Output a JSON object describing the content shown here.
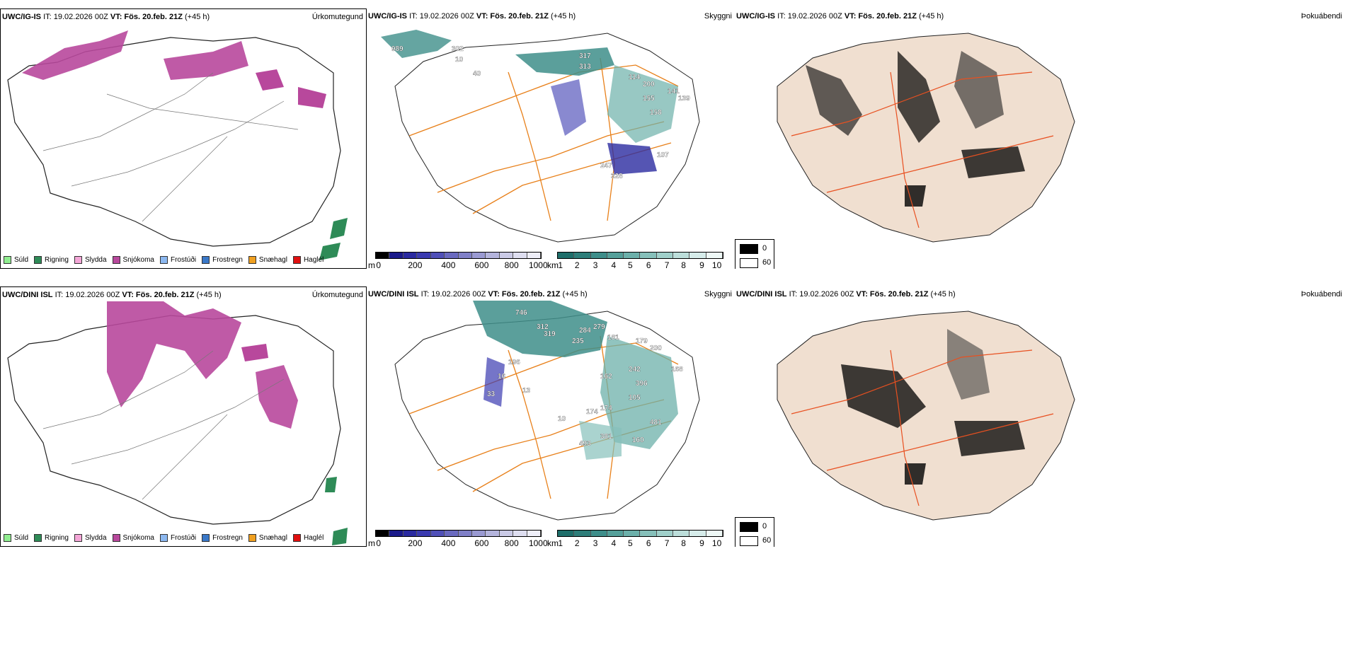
{
  "rows": [
    {
      "model": "UWC/IG-IS",
      "it_label": "IT: 19.02.2026 00Z",
      "vt_label": "VT: Fös. 20.feb. 21Z",
      "lead": "(+45 h)",
      "ceiling_labels": [
        "989",
        "302",
        "313",
        "317",
        "114",
        "200",
        "155",
        "158",
        "141",
        "139",
        "247",
        "328",
        "107",
        "40",
        "10"
      ]
    },
    {
      "model": "UWC/DINI ISL",
      "it_label": "IT: 19.02.2026 00Z",
      "vt_label": "VT: Fös. 20.feb. 21Z",
      "lead": "(+45 h)",
      "ceiling_labels": [
        "746",
        "312",
        "319",
        "284",
        "235",
        "279",
        "181",
        "179",
        "200",
        "174",
        "168",
        "242",
        "396",
        "196",
        "162",
        "493",
        "381",
        "160",
        "481",
        "105",
        "174",
        "10",
        "13",
        "16",
        "33"
      ]
    }
  ],
  "panel_titles": {
    "precip": "Úrkomutegund",
    "ceiling": "Skyggni",
    "cloud": "Þokuábendi"
  },
  "precip_legend": [
    {
      "label": "Súld",
      "color": "#90ee90"
    },
    {
      "label": "Rigning",
      "color": "#2e8b57"
    },
    {
      "label": "Slydda",
      "color": "#f4a6d7"
    },
    {
      "label": "Snjókoma",
      "color": "#b8489c"
    },
    {
      "label": "Frostúði",
      "color": "#8cb8f0"
    },
    {
      "label": "Frostregn",
      "color": "#3a78c8"
    },
    {
      "label": "Snæhagl",
      "color": "#f0a020"
    },
    {
      "label": "Haglél",
      "color": "#e01010"
    }
  ],
  "ceiling_colorbar": {
    "unit": "m",
    "ticks": [
      "0",
      "200",
      "400",
      "600",
      "800",
      "1000"
    ],
    "colors": [
      "#000000",
      "#1a1a8a",
      "#2a2aa0",
      "#3a3ab0",
      "#5050b8",
      "#6a6ac0",
      "#8080c8",
      "#9a9ad2",
      "#b4b4dc",
      "#cacae6",
      "#dedef0",
      "#eeeef8"
    ]
  },
  "visibility_colorbar": {
    "unit": "km",
    "ticks": [
      "1",
      "2",
      "3",
      "4",
      "5",
      "6",
      "7",
      "8",
      "9",
      "10"
    ],
    "colors": [
      "#1e6e6a",
      "#2e7e7a",
      "#3e8e8a",
      "#55a09a",
      "#6cb0aa",
      "#86c0ba",
      "#a0d0ca",
      "#bcdeda",
      "#d6ecea",
      "#eef8f6"
    ]
  },
  "cloud_legend": {
    "min_label": "0",
    "max_label": "60"
  }
}
